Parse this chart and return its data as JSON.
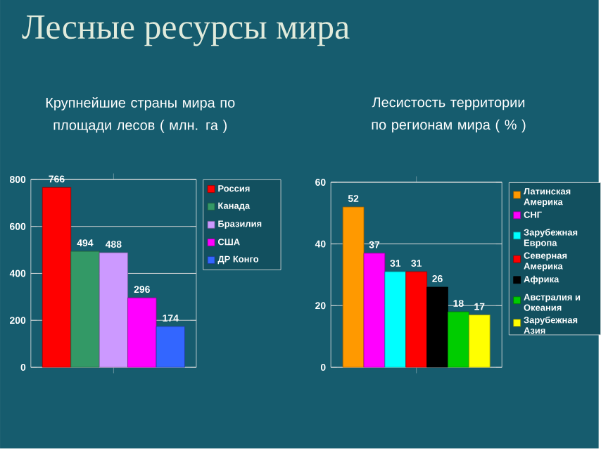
{
  "chart_data": [
    {
      "type": "bar",
      "title": "Лесные ресурсы мира",
      "subtitle": "Крупнейшие страны мира по площади лесов ( млн. га )",
      "categories": [
        null
      ],
      "series": [
        {
          "name": "Россия",
          "color": "#ff0000",
          "values": [
            766
          ]
        },
        {
          "name": "Канада",
          "color": "#339966",
          "values": [
            494
          ]
        },
        {
          "name": "Бразилия",
          "color": "#cc99ff",
          "values": [
            488
          ]
        },
        {
          "name": "США",
          "color": "#ff00ff",
          "values": [
            296
          ]
        },
        {
          "name": "ДР Конго",
          "color": "#3366ff",
          "values": [
            174
          ]
        }
      ],
      "ylim": [
        0,
        800
      ],
      "yticks": [
        0,
        200,
        400,
        600,
        800
      ],
      "grid": "y",
      "legend": "right",
      "data_labels": true,
      "tick_labels": "y"
    },
    {
      "type": "bar",
      "title": "Лесистость территории по регионам мира ( % )",
      "categories": [
        null
      ],
      "series": [
        {
          "name": "Латинская Америка",
          "color": "#ff9900",
          "values": [
            52
          ]
        },
        {
          "name": "СНГ",
          "color": "#ff00ff",
          "values": [
            37
          ]
        },
        {
          "name": "Зарубежная Европа",
          "color": "#00ffff",
          "values": [
            31
          ]
        },
        {
          "name": "Северная Америка",
          "color": "#ff0000",
          "values": [
            31
          ]
        },
        {
          "name": "Африка",
          "color": "#000000",
          "values": [
            26
          ]
        },
        {
          "name": "Австралия и Океания",
          "color": "#00cc00",
          "values": [
            18
          ]
        },
        {
          "name": "Зарубежная Азия",
          "color": "#ffff00",
          "values": [
            17
          ]
        }
      ],
      "ylim": [
        0,
        60
      ],
      "yticks": [
        0,
        20,
        40,
        60
      ],
      "grid": "y",
      "legend": "right",
      "data_labels": true,
      "tick_labels": "y"
    }
  ]
}
